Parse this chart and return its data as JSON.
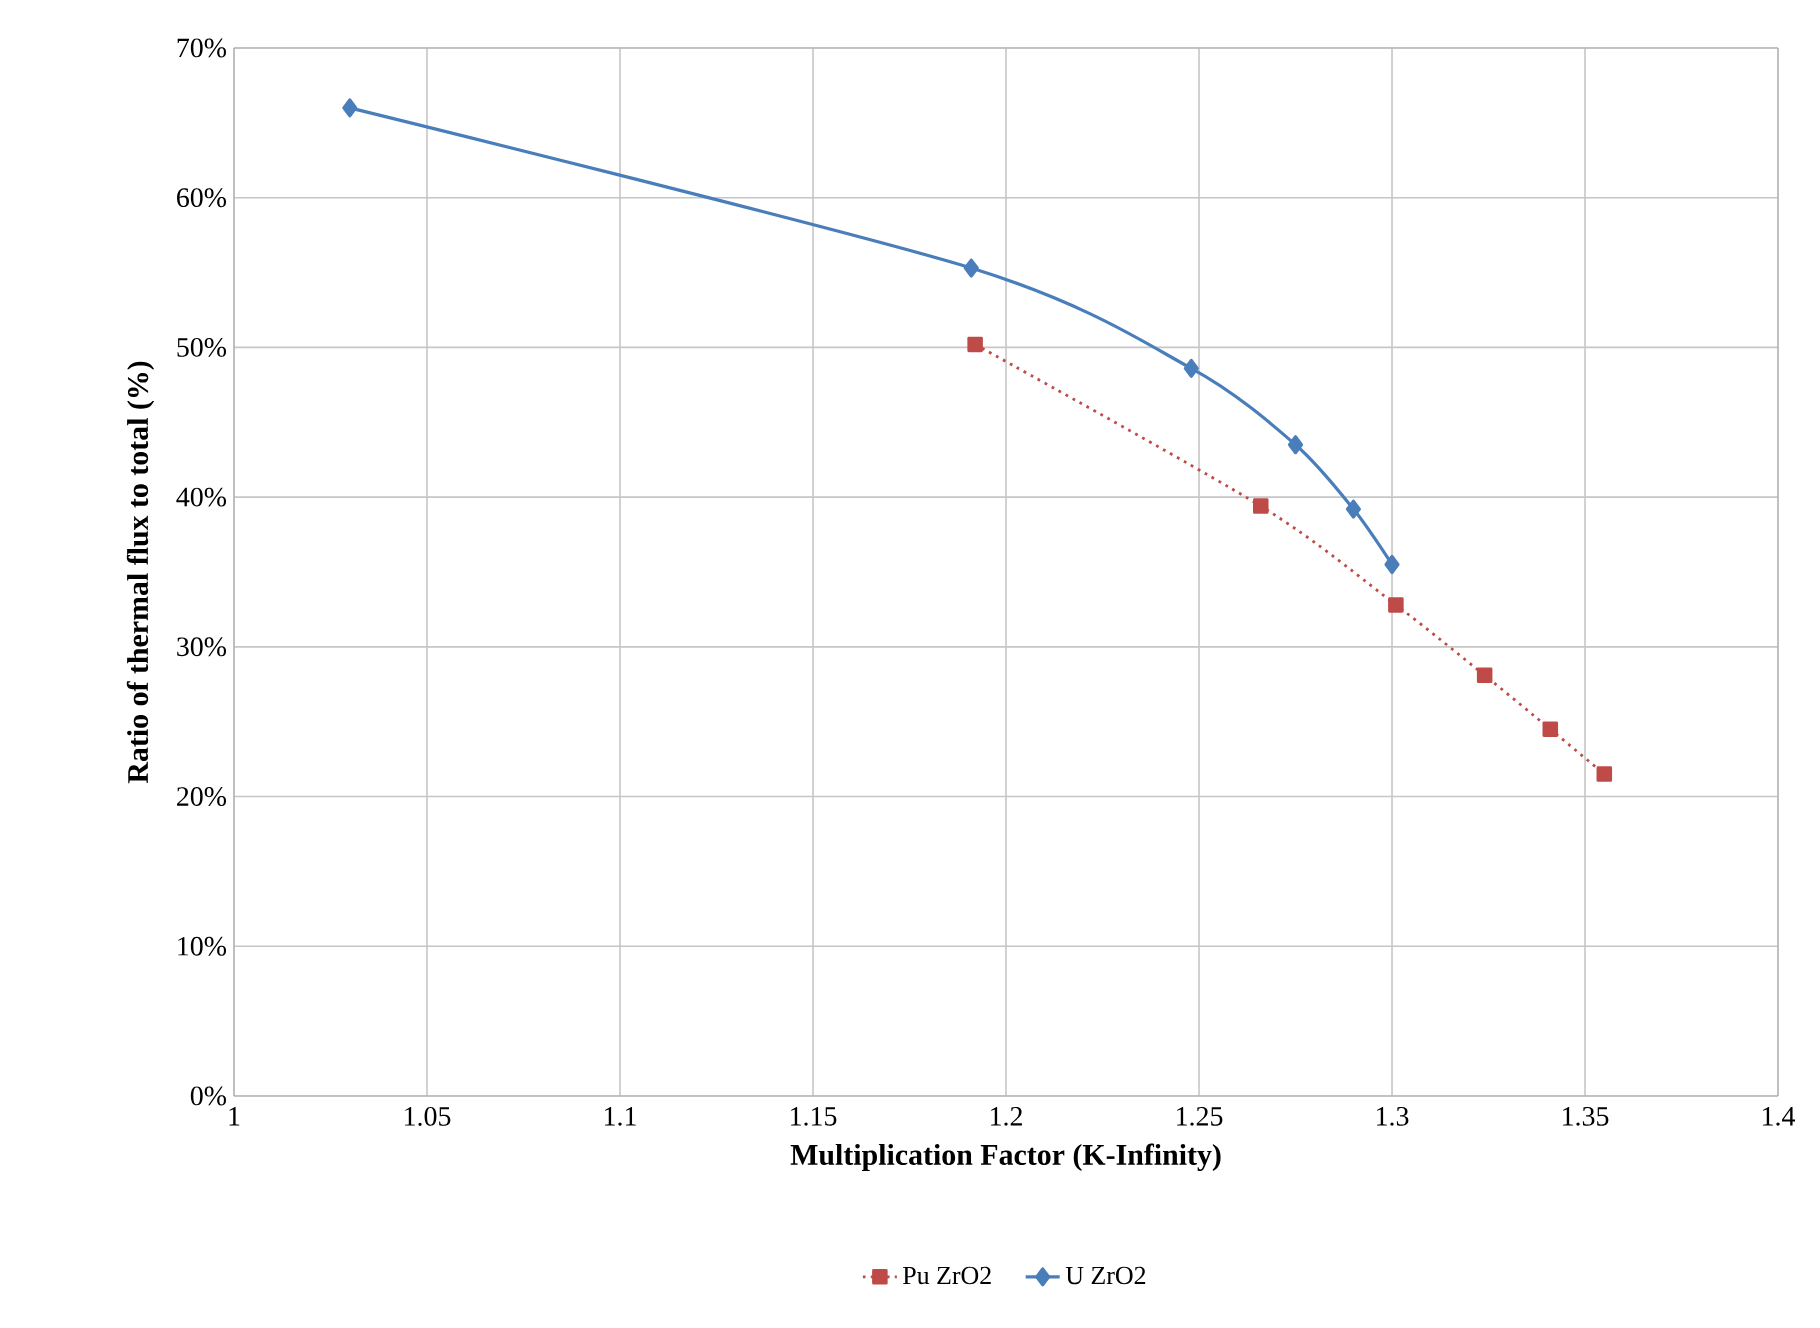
{
  "chart_data": {
    "type": "line",
    "xlabel": "Multiplication Factor (K-Infinity)",
    "ylabel": "Ratio of thermal flux to total (%)",
    "xlim": [
      1,
      1.4
    ],
    "xticks": [
      1,
      1.05,
      1.1,
      1.15,
      1.2,
      1.25,
      1.3,
      1.35,
      1.4
    ],
    "ylim": [
      0,
      70
    ],
    "yticks": [
      {
        "value": 0,
        "label": "0%"
      },
      {
        "value": 10,
        "label": "10%"
      },
      {
        "value": 20,
        "label": "20%"
      },
      {
        "value": 30,
        "label": "30%"
      },
      {
        "value": 40,
        "label": "40%"
      },
      {
        "value": 50,
        "label": "50%"
      },
      {
        "value": 60,
        "label": "60%"
      },
      {
        "value": 70,
        "label": "70%"
      }
    ],
    "grid": true,
    "legend": "bottom",
    "series": [
      {
        "name": "Pu ZrO2",
        "color": "#be4b48",
        "marker": "square",
        "line_style": "dotted",
        "x": [
          1.192,
          1.266,
          1.301,
          1.324,
          1.341,
          1.355
        ],
        "values": [
          50.2,
          39.4,
          32.8,
          28.1,
          24.5,
          21.5
        ]
      },
      {
        "name": "U ZrO2",
        "color": "#4a7ebb",
        "marker": "diamond",
        "line_style": "solid",
        "x": [
          1.03,
          1.191,
          1.248,
          1.275,
          1.29,
          1.3
        ],
        "values": [
          66,
          55.3,
          48.6,
          43.5,
          39.2,
          35.5
        ]
      }
    ]
  }
}
